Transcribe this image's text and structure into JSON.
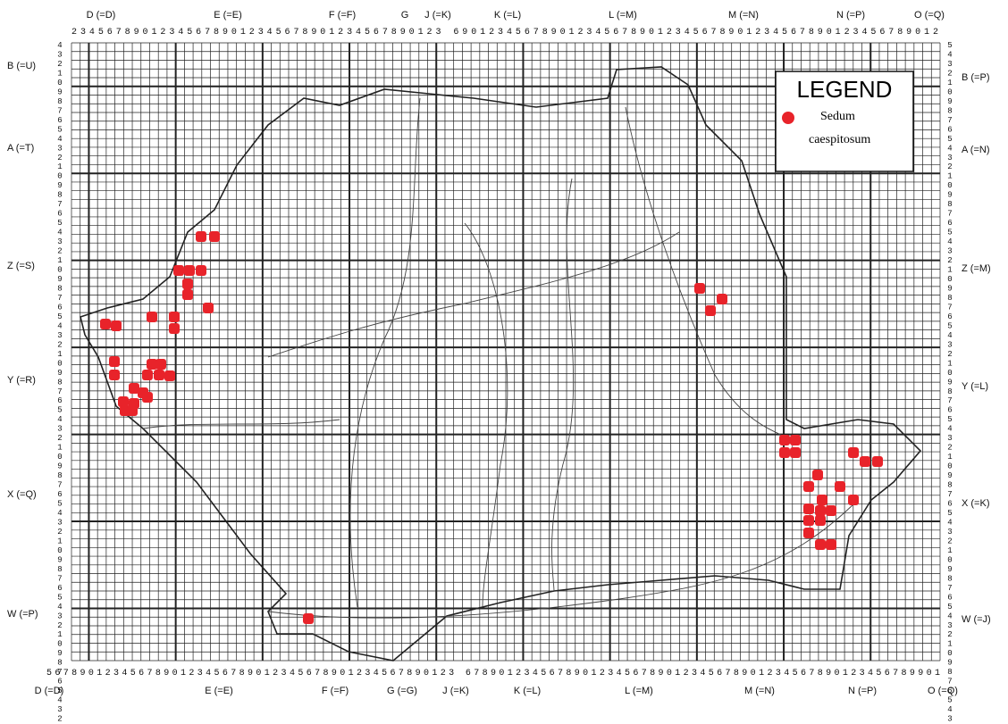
{
  "top_labels": [
    "D (=D)",
    "E (=E)",
    "F (=F)",
    "G",
    "J (=K)",
    "K (=L)",
    "L (=M)",
    "M (=N)",
    "N (=P)",
    "O (=Q)"
  ],
  "bottom_labels": [
    "D (=D)",
    "E (=E)",
    "F (=F)",
    "G (=G)",
    "J (=K)",
    "K (=L)",
    "L (=M)",
    "M (=N)",
    "N (=P)",
    "O (=Q)"
  ],
  "left_labels": [
    "B (=U)",
    "A (=T)",
    "Z (=S)",
    "Y (=R)",
    "X (=Q)",
    "W (=P)"
  ],
  "right_labels": [
    "B (=P)",
    "A (=N)",
    "Z (=M)",
    "Y (=L)",
    "X (=K)",
    "W (=J)"
  ],
  "top_digits": "234567890123456789012345678901234567890123 6901234567890123456789012345678901234567890123456789012",
  "bottom_digits": "5678901234567890123456789012345678901234567890123 678901234567890123456789012345678901234567890123456789901",
  "left_digits": "4321098765432109876543210987654321098765432109876543210987654321098765432",
  "right_digits": "5432109876543210987654321098765432109876543210987654321098765432109876543",
  "legend": {
    "title": "LEGEND",
    "item_lines": [
      "Sedum",
      "caespitosum"
    ]
  }
}
